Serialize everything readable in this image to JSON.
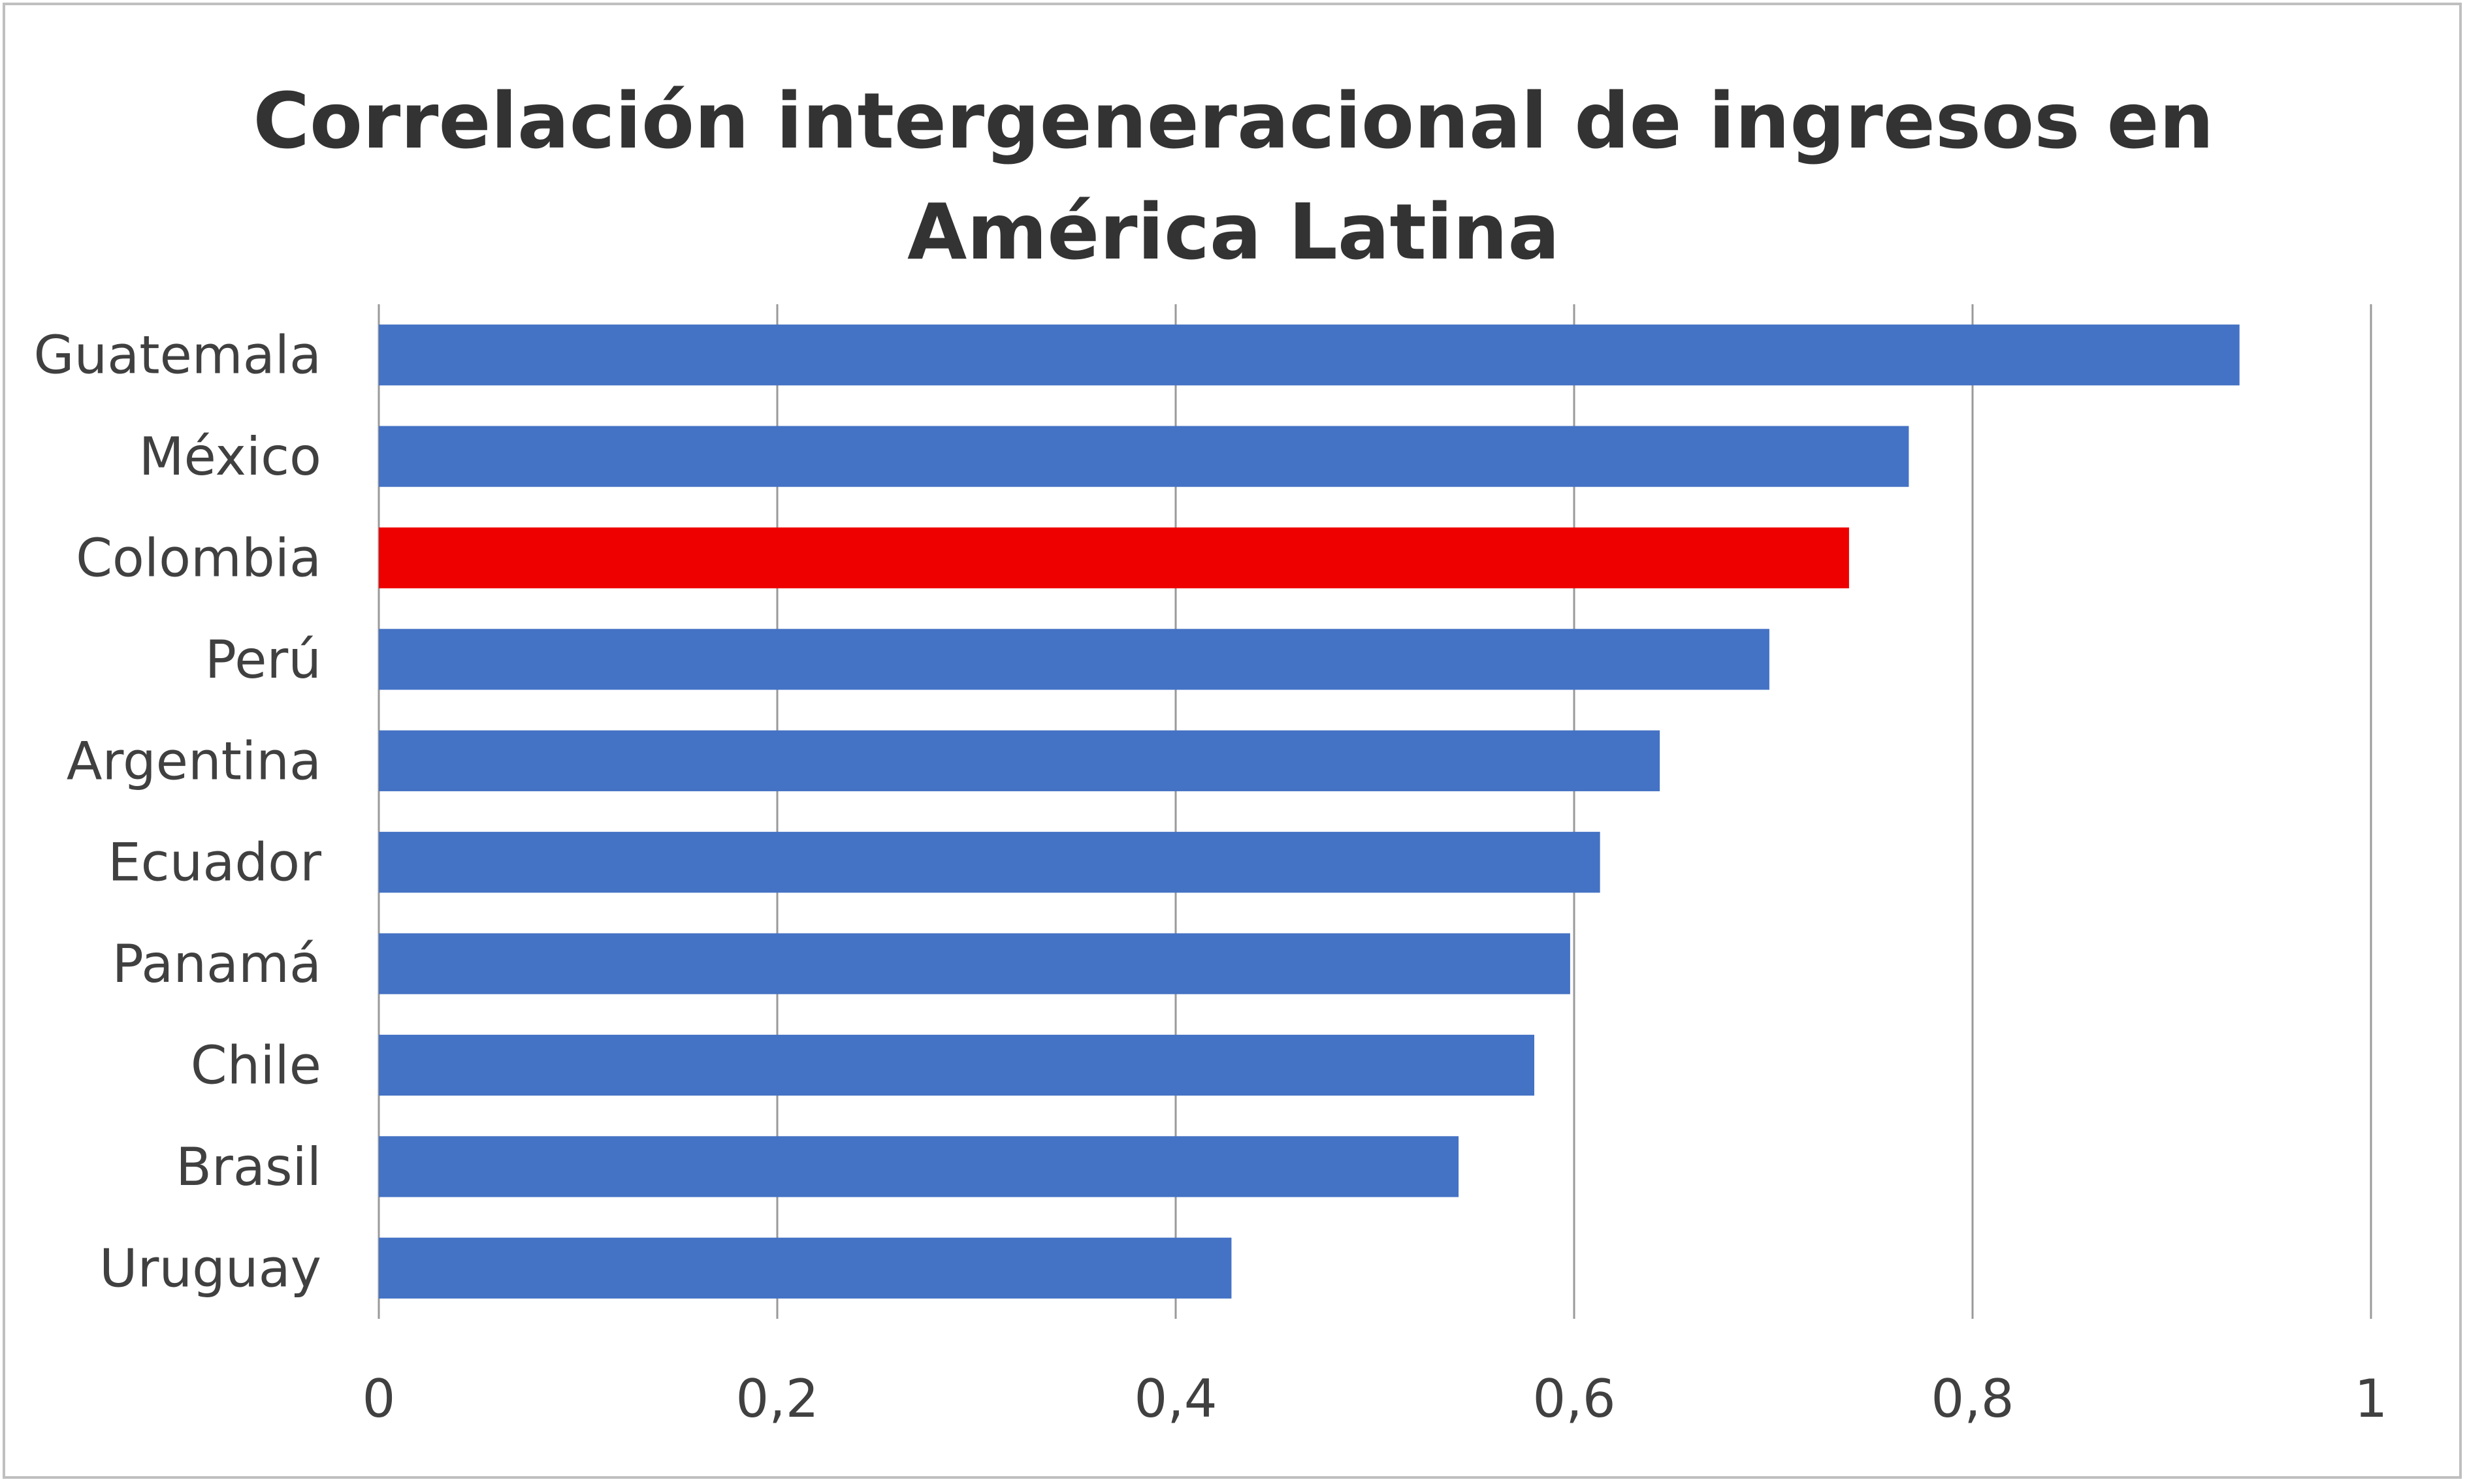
{
  "chart_data": {
    "type": "bar",
    "orientation": "horizontal",
    "title": "Correlación intergeneracional de ingresos en América Latina",
    "title_lines": [
      "Correlación intergeneracional de ingresos en",
      "América Latina"
    ],
    "xlabel": "",
    "ylabel": "",
    "categories": [
      "Guatemala",
      "México",
      "Colombia",
      "Perú",
      "Argentina",
      "Ecuador",
      "Panamá",
      "Chile",
      "Brasil",
      "Uruguay"
    ],
    "values": [
      0.934,
      0.768,
      0.738,
      0.698,
      0.643,
      0.613,
      0.598,
      0.58,
      0.542,
      0.428
    ],
    "xlim": [
      0,
      1
    ],
    "xticks": [
      0,
      0.2,
      0.4,
      0.6,
      0.8,
      1
    ],
    "xtick_labels": [
      "0",
      "0,2",
      "0,4",
      "0,6",
      "0,8",
      "1"
    ],
    "grid": "vertical",
    "legend": "none",
    "colors": {
      "default_bar": "#4472C4",
      "highlight_bar": "#EE0000",
      "highlight_category": "Colombia",
      "gridline": "#9a9a9a",
      "text": "#404040"
    }
  }
}
